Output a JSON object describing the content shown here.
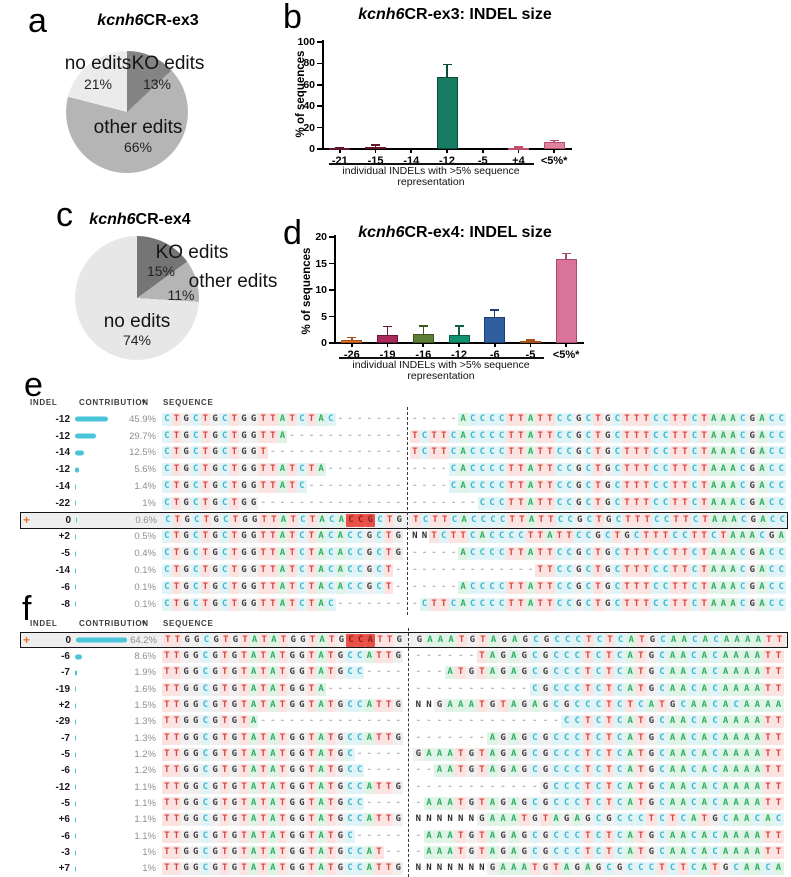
{
  "ui": {
    "plus": "+",
    "sort_icon": "▾"
  },
  "panels": {
    "a": {
      "letter": "a",
      "title_italic": "kcnh6",
      "title_rest": "CR-ex3"
    },
    "b": {
      "letter": "b",
      "title_italic": "kcnh6",
      "title_rest": "CR-ex3: INDEL size",
      "ylabel": "% of sequences",
      "footnote1": "individual INDELs with >5% sequence",
      "footnote2": "representation"
    },
    "c": {
      "letter": "c",
      "title_italic": "kcnh6",
      "title_rest": "CR-ex4"
    },
    "d": {
      "letter": "d",
      "title_italic": "kcnh6",
      "title_rest": "CR-ex4: INDEL size",
      "ylabel": "% of sequences",
      "footnote1": "individual INDELs with >5% sequence",
      "footnote2": "representation"
    },
    "e": {
      "letter": "e",
      "columns": {
        "indel": "INDEL",
        "contribution": "CONTRIBUTION",
        "sequence": "SEQUENCE"
      },
      "cut_len": 25,
      "rows": [
        {
          "indel": "-12",
          "pct": "45.9%",
          "bar": 45.9,
          "left": "CTGCTGCTGGTTATCTAC-------",
          "right": "-----ACCCCTTATTCCGCTGCTTTCCTTCTAAACGACC"
        },
        {
          "indel": "-12",
          "pct": "29.7%",
          "bar": 29.7,
          "left": "CTGCTGCTGGTTA------------",
          "right": "TCTTCACCCCTTATTCCGCTGCTTTCCTTCTAAACGACC"
        },
        {
          "indel": "-14",
          "pct": "12.5%",
          "bar": 12.5,
          "left": "CTGCTGCTGGT--------------",
          "right": "TCTTCACCCCTTATTCCGCTGCTTTCCTTCTAAACGACC"
        },
        {
          "indel": "-12",
          "pct": "5.6%",
          "bar": 5.6,
          "left": "CTGCTGCTGGTTATCTA--------",
          "right": "----CACCCCTTATTCCGCTGCTTTCCTTCTAAACGACC"
        },
        {
          "indel": "-14",
          "pct": "1.4%",
          "bar": 1.4,
          "left": "CTGCTGCTGGTTATC----------",
          "right": "----CACCCCTTATTCCGCTGCTTTCCTTCTAAACGACC"
        },
        {
          "indel": "-22",
          "pct": "1%",
          "bar": 1.0,
          "left": "CTGCTGCTGG---------------",
          "right": "-------CCCTTATTCCGCTGCTTTCCTTCTAAACGACC"
        },
        {
          "indel": "0",
          "pct": "0.6%",
          "bar": 0.6,
          "ref": true,
          "hl": [
            19,
            3
          ],
          "left": "CTGCTGCTGGTTATCTACACCGCTG",
          "right": "TCTTCACCCCTTATTCCGCTGCTTTCCTTCTAAACGACC"
        },
        {
          "indel": "+2",
          "pct": "0.5%",
          "bar": 0.5,
          "left": "CTGCTGCTGGTTATCTACACCGCTG",
          "right": "NNTCTTCACCCCTTATTCCGCTGCTTTCCTTCTAAACGA"
        },
        {
          "indel": "-5",
          "pct": "0.4%",
          "bar": 0.4,
          "left": "CTGCTGCTGGTTATCTACACCGCTG",
          "right": "-----ACCCCTTATTCCGCTGCTTTCCTTCTAAACGACC"
        },
        {
          "indel": "-14",
          "pct": "0.1%",
          "bar": 0.1,
          "left": "CTGCTGCTGGTTATCTACACCGCT-",
          "right": "-------------TTCCGCTGCTTTCCTTCTAAACGACC"
        },
        {
          "indel": "-6",
          "pct": "0.1%",
          "bar": 0.1,
          "left": "CTGCTGCTGGTTATCTACACCGCT-",
          "right": "-----ACCCCTTATTCCGCTGCTTTCCTTCTAAACGACC"
        },
        {
          "indel": "-8",
          "pct": "0.1%",
          "bar": 0.1,
          "left": "CTGCTGCTGGTTATCTAC-------",
          "right": "-CTTCACCCCTTATTCCGCTGCTTTCCTTCTAAACGACC"
        }
      ]
    },
    "f": {
      "letter": "f",
      "columns": {
        "indel": "INDEL",
        "contribution": "CONTRIBUTION",
        "sequence": "SEQUENCE"
      },
      "cut_len": 25,
      "rows": [
        {
          "indel": "0",
          "pct": "64.2%",
          "bar": 64.2,
          "ref": true,
          "hl": [
            19,
            3
          ],
          "left": "TTGGCGTGTATATGGTATGCCATTG",
          "right": "GAAATGTAGAGCGCCCTCTCATGCAACACAAAATT"
        },
        {
          "indel": "-6",
          "pct": "8.6%",
          "bar": 8.6,
          "left": "TTGGCGTGTATATGGTATGCCATTG",
          "right": "------TAGAGCGCCCTCTCATGCAACACAAAATT"
        },
        {
          "indel": "-7",
          "pct": "1.9%",
          "bar": 1.9,
          "left": "TTGGCGTGTATATGGTATGCC----",
          "right": "---ATGTAGAGCGCCCTCTCATGCAACACAAAATT"
        },
        {
          "indel": "-19",
          "pct": "1.6%",
          "bar": 1.6,
          "left": "TTGGCGTGTATATGGTA--------",
          "right": "-----------CGCCCTCTCATGCAACACAAAATT"
        },
        {
          "indel": "+2",
          "pct": "1.5%",
          "bar": 1.5,
          "left": "TTGGCGTGTATATGGTATGCCATTG",
          "right": "NNGAAATGTAGAGCGCCCTCTCATGCAACACAAAA"
        },
        {
          "indel": "-29",
          "pct": "1.3%",
          "bar": 1.3,
          "left": "TTGGCGTGTA---------------",
          "right": "--------------CCTCTCATGCAACACAAAATT"
        },
        {
          "indel": "-7",
          "pct": "1.3%",
          "bar": 1.3,
          "left": "TTGGCGTGTATATGGTATGCCATTG",
          "right": "-------AGAGCGCCCTCTCATGCAACACAAAATT"
        },
        {
          "indel": "-5",
          "pct": "1.2%",
          "bar": 1.2,
          "left": "TTGGCGTGTATATGGTATGC-----",
          "right": "GAAATGTAGAGCGCCCTCTCATGCAACACAAAATT"
        },
        {
          "indel": "-6",
          "pct": "1.2%",
          "bar": 1.2,
          "left": "TTGGCGTGTATATGGTATGCC----",
          "right": "--AATGTAGAGCGCCCTCTCATGCAACACAAAATT"
        },
        {
          "indel": "-12",
          "pct": "1.1%",
          "bar": 1.1,
          "left": "TTGGCGTGTATATGGTATGCCATTG",
          "right": "------------GCCCTCTCATGCAACACAAAATT"
        },
        {
          "indel": "-5",
          "pct": "1.1%",
          "bar": 1.1,
          "left": "TTGGCGTGTATATGGTATGCC----",
          "right": "-AAATGTAGAGCGCCCTCTCATGCAACACAAAATT"
        },
        {
          "indel": "+6",
          "pct": "1.1%",
          "bar": 1.1,
          "left": "TTGGCGTGTATATGGTATGCCATTG",
          "right": "NNNNNNGAAATGTAGAGCGCCCTCTCATGCAACAC"
        },
        {
          "indel": "-6",
          "pct": "1.1%",
          "bar": 1.1,
          "left": "TTGGCGTGTATATGGTATGC-----",
          "right": "-AAATGTAGAGCGCCCTCTCATGCAACACAAAATT"
        },
        {
          "indel": "-3",
          "pct": "1%",
          "bar": 1.0,
          "left": "TTGGCGTGTATATGGTATGCCAT--",
          "right": "-AAATGTAGAGCGCCCTCTCATGCAACACAAAATT"
        },
        {
          "indel": "+7",
          "pct": "1%",
          "bar": 1.0,
          "left": "TTGGCGTGTATATGGTATGCCATTG",
          "right": "NNNNNNNGAAATGTAGAGCGCCCTCTCATGCAACA"
        }
      ]
    }
  },
  "chart_data": [
    {
      "id": "a",
      "type": "pie",
      "title": "kcnh6CR-ex3",
      "slices": [
        {
          "label": "KO edits",
          "value": 13,
          "pct_label": "13%",
          "color": "#848484"
        },
        {
          "label": "other edits",
          "value": 66,
          "pct_label": "66%",
          "color": "#b5b5b5"
        },
        {
          "label": "no edits",
          "value": 21,
          "pct_label": "21%",
          "color": "#ebebeb"
        }
      ]
    },
    {
      "id": "b",
      "type": "bar",
      "title": "kcnh6CR-ex3: INDEL size",
      "ylabel": "% of sequences",
      "categories": [
        "-21",
        "-15",
        "-14",
        "-12",
        "-5",
        "+4",
        "<5%*"
      ],
      "values": [
        0.4,
        2.2,
        0,
        67,
        0,
        1.0,
        6.5
      ],
      "errors": [
        0.4,
        1.5,
        0,
        12,
        0,
        0.6,
        1.5
      ],
      "colors": [
        "#9e2b47",
        "#9e2b47",
        "#9e2b47",
        "#177c62",
        "#9e2b47",
        "#f093a9",
        "#e2829f"
      ],
      "err_colors": [
        "#5f1729",
        "#5f1729",
        "#5f1729",
        "#0c4a39",
        "#5f1729",
        "#c14f6b",
        "#b25374"
      ],
      "ylim": [
        0,
        100
      ],
      "yticks": [
        0,
        20,
        40,
        60,
        80,
        100
      ],
      "annotation": "individual INDELs with >5% sequence representation",
      "annotation_span": 6
    },
    {
      "id": "c",
      "type": "pie",
      "title": "kcnh6CR-ex4",
      "slices": [
        {
          "label": "KO edits",
          "value": 15,
          "pct_label": "15%",
          "color": "#757575"
        },
        {
          "label": "other edits",
          "value": 11,
          "pct_label": "11%",
          "color": "#b5b5b5"
        },
        {
          "label": "no edits",
          "value": 74,
          "pct_label": "74%",
          "color": "#e7e7e7"
        }
      ]
    },
    {
      "id": "d",
      "type": "bar",
      "title": "kcnh6CR-ex4: INDEL size",
      "ylabel": "% of sequences",
      "categories": [
        "-26",
        "-19",
        "-16",
        "-12",
        "-6",
        "-5",
        "<5%*"
      ],
      "values": [
        0.5,
        1.6,
        1.7,
        1.6,
        5.0,
        0.4,
        15.8
      ],
      "errors": [
        0.5,
        1.5,
        1.5,
        1.6,
        1.2,
        0.2,
        1.1
      ],
      "colors": [
        "#e0722f",
        "#aa2a5b",
        "#5f7e35",
        "#139272",
        "#2f5f9f",
        "#e0722f",
        "#d9739a"
      ],
      "err_colors": [
        "#a84f17",
        "#6d1437",
        "#3e5520",
        "#0b5f49",
        "#1c3e6e",
        "#a84f17",
        "#a54b6f"
      ],
      "ylim": [
        0,
        20
      ],
      "yticks": [
        0,
        5,
        10,
        15,
        20
      ],
      "annotation": "individual INDELs with >5% sequence representation",
      "annotation_span": 6
    }
  ]
}
